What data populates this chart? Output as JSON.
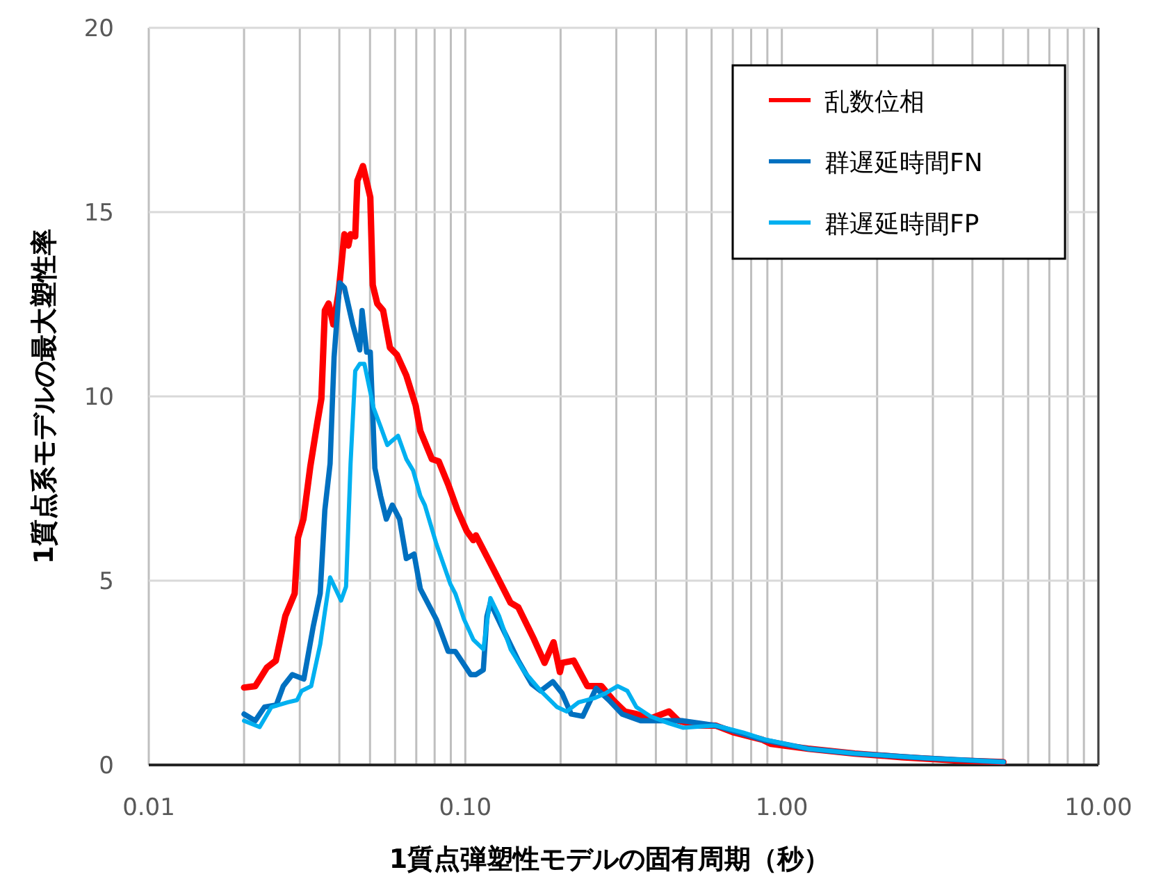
{
  "chart_data": {
    "type": "line",
    "xlabel": "1質点弾塑性モデルの固有周期（秒）",
    "ylabel": "1質点系モデルの最大塑性率",
    "log": "x",
    "grid": true,
    "legend": "top right",
    "xlim": [
      0.01,
      10
    ],
    "xticks": [
      0.01,
      {
        "value": 0.1,
        "label": "0.10"
      },
      {
        "value": 1,
        "label": "1.00"
      },
      {
        "value": 10,
        "label": "10.00"
      }
    ],
    "ylim": [
      0,
      20
    ],
    "yticks": [
      0,
      5,
      10,
      15,
      20
    ],
    "series": [
      {
        "name": "乱数位相",
        "color": "#ff0000",
        "x": [
          0.02,
          0.0217,
          0.0236,
          0.0252,
          0.027,
          0.0289,
          0.0296,
          0.0308,
          0.0324,
          0.0341,
          0.0351,
          0.036,
          0.037,
          0.0383,
          0.0398,
          0.0415,
          0.0427,
          0.0434,
          0.0449,
          0.0456,
          0.0475,
          0.0501,
          0.051,
          0.0527,
          0.055,
          0.0578,
          0.0608,
          0.0651,
          0.0697,
          0.0721,
          0.0784,
          0.0824,
          0.0883,
          0.0944,
          0.101,
          0.106,
          0.108,
          0.122,
          0.139,
          0.147,
          0.165,
          0.178,
          0.19,
          0.199,
          0.202,
          0.22,
          0.243,
          0.269,
          0.293,
          0.319,
          0.347,
          0.384,
          0.44,
          0.471,
          0.539,
          0.617,
          0.706,
          0.865,
          0.925,
          1.21,
          1.7,
          2.39,
          3.58,
          5.01
        ],
        "values": [
          2.1,
          2.14,
          2.64,
          2.83,
          4.04,
          4.65,
          6.16,
          6.67,
          8.11,
          9.3,
          9.94,
          12.33,
          12.52,
          11.95,
          12.83,
          14.4,
          14.09,
          14.4,
          14.34,
          15.85,
          16.25,
          15.4,
          13.02,
          12.52,
          12.33,
          11.32,
          11.13,
          10.57,
          9.75,
          9.06,
          8.3,
          8.24,
          7.61,
          6.92,
          6.35,
          6.1,
          6.23,
          5.35,
          4.4,
          4.28,
          3.4,
          2.77,
          3.33,
          2.52,
          2.77,
          2.83,
          2.14,
          2.14,
          1.76,
          1.45,
          1.38,
          1.26,
          1.45,
          1.2,
          1.07,
          1.07,
          0.88,
          0.69,
          0.57,
          0.44,
          0.31,
          0.21,
          0.12,
          0.08
        ]
      },
      {
        "name": "群遅延時間FN",
        "color": "#0070c0",
        "x": [
          0.02,
          0.0217,
          0.0232,
          0.0253,
          0.0266,
          0.0284,
          0.0309,
          0.0331,
          0.0348,
          0.036,
          0.0374,
          0.0385,
          0.0401,
          0.0415,
          0.0441,
          0.0464,
          0.0472,
          0.0488,
          0.0501,
          0.0518,
          0.054,
          0.0563,
          0.0588,
          0.062,
          0.0651,
          0.0689,
          0.0721,
          0.081,
          0.0883,
          0.093,
          0.104,
          0.108,
          0.114,
          0.117,
          0.12,
          0.13,
          0.147,
          0.162,
          0.173,
          0.189,
          0.202,
          0.216,
          0.235,
          0.259,
          0.284,
          0.313,
          0.358,
          0.44,
          0.487,
          0.617,
          0.731,
          0.865,
          1.21,
          1.7,
          2.81,
          5.01
        ],
        "values": [
          1.38,
          1.2,
          1.57,
          1.63,
          2.14,
          2.45,
          2.33,
          3.77,
          4.65,
          6.92,
          8.18,
          11.07,
          13.08,
          12.95,
          11.95,
          11.26,
          12.33,
          11.2,
          11.2,
          8.05,
          7.3,
          6.67,
          7.05,
          6.67,
          5.6,
          5.72,
          4.78,
          3.95,
          3.08,
          3.08,
          2.45,
          2.45,
          2.58,
          4.03,
          4.4,
          3.77,
          2.83,
          2.2,
          2.01,
          2.26,
          1.95,
          1.38,
          1.32,
          2.08,
          1.76,
          1.38,
          1.2,
          1.2,
          1.2,
          1.07,
          0.88,
          0.69,
          0.44,
          0.31,
          0.19,
          0.08
        ]
      },
      {
        "name": "群遅延時間FP",
        "color": "#00b0f0",
        "x": [
          0.02,
          0.0224,
          0.0244,
          0.0275,
          0.0294,
          0.0304,
          0.0326,
          0.0348,
          0.036,
          0.0374,
          0.0405,
          0.042,
          0.0434,
          0.0449,
          0.0464,
          0.048,
          0.0513,
          0.054,
          0.0567,
          0.0588,
          0.0613,
          0.0651,
          0.0684,
          0.0721,
          0.0745,
          0.081,
          0.0897,
          0.093,
          0.099,
          0.106,
          0.114,
          0.12,
          0.128,
          0.139,
          0.154,
          0.173,
          0.195,
          0.209,
          0.228,
          0.257,
          0.278,
          0.303,
          0.325,
          0.347,
          0.384,
          0.44,
          0.487,
          0.617,
          0.755,
          0.884,
          1.21,
          1.7,
          2.81,
          5.01
        ],
        "values": [
          1.2,
          1.03,
          1.57,
          1.7,
          1.76,
          2.01,
          2.14,
          3.27,
          4.15,
          5.09,
          4.46,
          4.84,
          8.18,
          10.69,
          10.88,
          10.88,
          9.69,
          9.18,
          8.68,
          8.8,
          8.93,
          8.3,
          7.99,
          7.3,
          7.05,
          6.0,
          4.91,
          4.65,
          3.96,
          3.4,
          3.14,
          4.53,
          4.03,
          3.14,
          2.52,
          2.01,
          1.57,
          1.45,
          1.7,
          1.82,
          1.95,
          2.14,
          2.01,
          1.57,
          1.32,
          1.13,
          1.01,
          1.07,
          0.88,
          0.69,
          0.44,
          0.31,
          0.19,
          0.08
        ]
      }
    ]
  }
}
